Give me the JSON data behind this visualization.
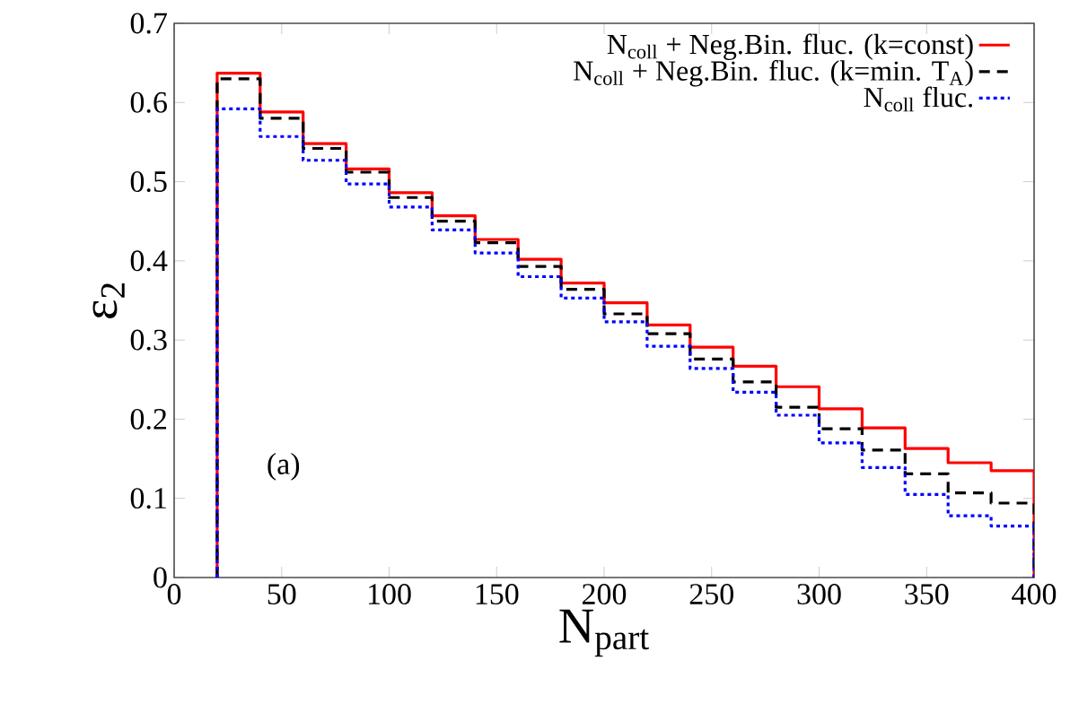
{
  "chart_data": {
    "type": "histogram",
    "xlabel": "N$_{part}$",
    "ylabel": "ε$_{2}$",
    "bins": [
      20,
      40,
      60,
      80,
      100,
      120,
      140,
      160,
      180,
      200,
      220,
      240,
      260,
      280,
      300,
      320,
      340,
      360,
      380,
      400
    ],
    "series": [
      {
        "name": "N$_{coll}$ + Neg.Bin. fluc. (k=const)",
        "color": "#ff0000",
        "line_style": "solid",
        "values": [
          0.637,
          0.588,
          0.548,
          0.516,
          0.486,
          0.457,
          0.427,
          0.402,
          0.372,
          0.347,
          0.319,
          0.291,
          0.267,
          0.241,
          0.213,
          0.189,
          0.163,
          0.145,
          0.135
        ]
      },
      {
        "name": "N$_{coll}$ + Neg.Bin. fluc. (k=min. T$_{A}$)",
        "color": "#000000",
        "line_style": "dashed",
        "values": [
          0.63,
          0.58,
          0.542,
          0.512,
          0.48,
          0.45,
          0.423,
          0.393,
          0.364,
          0.333,
          0.308,
          0.276,
          0.247,
          0.215,
          0.188,
          0.161,
          0.131,
          0.107,
          0.094
        ]
      },
      {
        "name": "N$_{coll}$ fluc.",
        "color": "#0000ff",
        "line_style": "dotted",
        "values": [
          0.592,
          0.557,
          0.527,
          0.497,
          0.468,
          0.439,
          0.41,
          0.38,
          0.353,
          0.323,
          0.292,
          0.264,
          0.234,
          0.205,
          0.17,
          0.139,
          0.105,
          0.078,
          0.065
        ]
      }
    ],
    "xlim": [
      0,
      400
    ],
    "ylim": [
      0,
      0.7
    ],
    "xticks": [
      0,
      50,
      100,
      150,
      200,
      250,
      300,
      350,
      400
    ],
    "yticks": [
      0,
      0.1,
      0.2,
      0.3,
      0.4,
      0.5,
      0.6,
      0.7
    ],
    "legend": "top right",
    "grid": false,
    "annotations": [
      "(a)"
    ]
  }
}
